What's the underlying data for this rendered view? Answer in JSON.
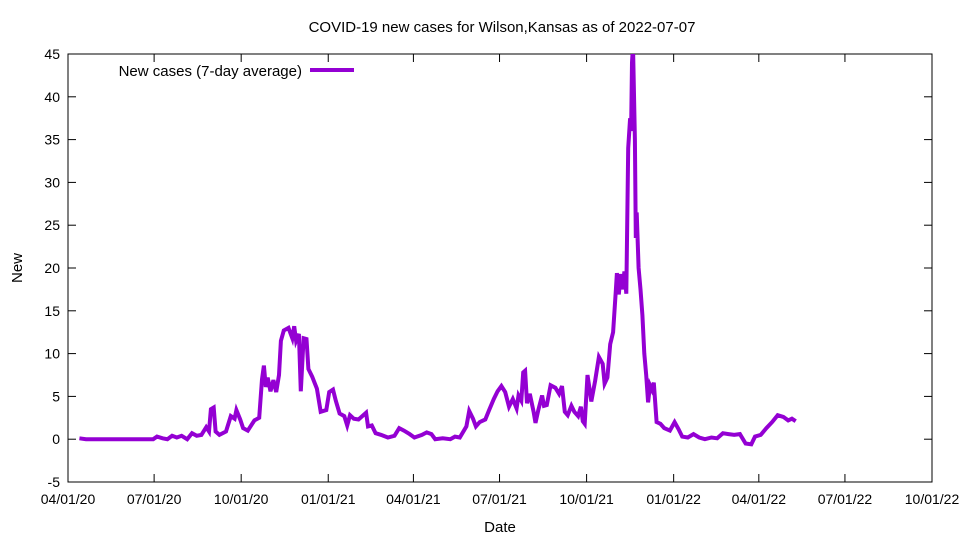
{
  "chart_data": {
    "type": "line",
    "title": "COVID-19 new cases for Wilson,Kansas as of 2022-07-07",
    "xlabel": "Date",
    "ylabel": "New",
    "xlim": [
      "2020-04-01",
      "2022-10-01"
    ],
    "ylim": [
      -5,
      45
    ],
    "x_ticks": [
      "04/01/20",
      "07/01/20",
      "10/01/20",
      "01/01/21",
      "04/01/21",
      "07/01/21",
      "10/01/21",
      "01/01/22",
      "04/01/22",
      "07/01/22",
      "10/01/22"
    ],
    "x_tick_dates": [
      "2020-04-01",
      "2020-07-01",
      "2020-10-01",
      "2021-01-01",
      "2021-04-01",
      "2021-07-01",
      "2021-10-01",
      "2022-01-01",
      "2022-04-01",
      "2022-07-01",
      "2022-10-01"
    ],
    "y_ticks": [
      -5,
      0,
      5,
      10,
      15,
      20,
      25,
      30,
      35,
      40,
      45
    ],
    "grid": false,
    "legend_position": "top-left",
    "series": [
      {
        "name": "New cases (7-day average)",
        "color": "#9400d3",
        "points": [
          [
            "2020-04-13",
            0.1
          ],
          [
            "2020-04-20",
            0.0
          ],
          [
            "2020-05-15",
            0.0
          ],
          [
            "2020-06-15",
            0.0
          ],
          [
            "2020-06-30",
            0.0
          ],
          [
            "2020-07-04",
            0.3
          ],
          [
            "2020-07-10",
            0.1
          ],
          [
            "2020-07-15",
            0.0
          ],
          [
            "2020-07-20",
            0.4
          ],
          [
            "2020-07-25",
            0.2
          ],
          [
            "2020-07-30",
            0.4
          ],
          [
            "2020-08-05",
            0.0
          ],
          [
            "2020-08-10",
            0.7
          ],
          [
            "2020-08-15",
            0.4
          ],
          [
            "2020-08-20",
            0.5
          ],
          [
            "2020-08-25",
            1.4
          ],
          [
            "2020-08-28",
            0.9
          ],
          [
            "2020-08-30",
            3.5
          ],
          [
            "2020-09-02",
            3.7
          ],
          [
            "2020-09-04",
            0.9
          ],
          [
            "2020-09-08",
            0.5
          ],
          [
            "2020-09-15",
            0.9
          ],
          [
            "2020-09-20",
            2.7
          ],
          [
            "2020-09-24",
            2.4
          ],
          [
            "2020-09-26",
            3.4
          ],
          [
            "2020-09-30",
            2.3
          ],
          [
            "2020-10-03",
            1.3
          ],
          [
            "2020-10-08",
            1.0
          ],
          [
            "2020-10-15",
            2.2
          ],
          [
            "2020-10-20",
            2.5
          ],
          [
            "2020-10-23",
            7.0
          ],
          [
            "2020-10-25",
            8.6
          ],
          [
            "2020-10-27",
            6.1
          ],
          [
            "2020-10-29",
            7.2
          ],
          [
            "2020-11-01",
            5.6
          ],
          [
            "2020-11-04",
            6.9
          ],
          [
            "2020-11-07",
            5.5
          ],
          [
            "2020-11-10",
            7.5
          ],
          [
            "2020-11-12",
            11.5
          ],
          [
            "2020-11-15",
            12.7
          ],
          [
            "2020-11-20",
            13.0
          ],
          [
            "2020-11-24",
            11.8
          ],
          [
            "2020-11-26",
            13.2
          ],
          [
            "2020-11-28",
            11.5
          ],
          [
            "2020-12-01",
            12.3
          ],
          [
            "2020-12-03",
            5.6
          ],
          [
            "2020-12-06",
            11.8
          ],
          [
            "2020-12-09",
            11.7
          ],
          [
            "2020-12-11",
            8.2
          ],
          [
            "2020-12-15",
            7.3
          ],
          [
            "2020-12-20",
            5.9
          ],
          [
            "2020-12-24",
            3.2
          ],
          [
            "2020-12-30",
            3.4
          ],
          [
            "2021-01-02",
            5.5
          ],
          [
            "2021-01-06",
            5.8
          ],
          [
            "2021-01-09",
            4.5
          ],
          [
            "2021-01-13",
            3.0
          ],
          [
            "2021-01-18",
            2.7
          ],
          [
            "2021-01-21",
            1.6
          ],
          [
            "2021-01-24",
            2.8
          ],
          [
            "2021-01-28",
            2.4
          ],
          [
            "2021-02-02",
            2.3
          ],
          [
            "2021-02-06",
            2.7
          ],
          [
            "2021-02-10",
            3.1
          ],
          [
            "2021-02-12",
            1.5
          ],
          [
            "2021-02-16",
            1.6
          ],
          [
            "2021-02-20",
            0.7
          ],
          [
            "2021-02-26",
            0.5
          ],
          [
            "2021-03-05",
            0.2
          ],
          [
            "2021-03-12",
            0.4
          ],
          [
            "2021-03-17",
            1.3
          ],
          [
            "2021-03-22",
            1.0
          ],
          [
            "2021-03-28",
            0.6
          ],
          [
            "2021-04-02",
            0.2
          ],
          [
            "2021-04-10",
            0.5
          ],
          [
            "2021-04-15",
            0.8
          ],
          [
            "2021-04-20",
            0.6
          ],
          [
            "2021-04-24",
            0.0
          ],
          [
            "2021-05-02",
            0.1
          ],
          [
            "2021-05-10",
            0.0
          ],
          [
            "2021-05-15",
            0.3
          ],
          [
            "2021-05-20",
            0.2
          ],
          [
            "2021-05-27",
            1.5
          ],
          [
            "2021-05-30",
            3.3
          ],
          [
            "2021-06-03",
            2.4
          ],
          [
            "2021-06-06",
            1.5
          ],
          [
            "2021-06-10",
            2.0
          ],
          [
            "2021-06-16",
            2.3
          ],
          [
            "2021-06-20",
            3.4
          ],
          [
            "2021-06-25",
            4.7
          ],
          [
            "2021-06-29",
            5.6
          ],
          [
            "2021-07-03",
            6.2
          ],
          [
            "2021-07-07",
            5.5
          ],
          [
            "2021-07-11",
            3.8
          ],
          [
            "2021-07-15",
            4.7
          ],
          [
            "2021-07-19",
            3.6
          ],
          [
            "2021-07-21",
            5.1
          ],
          [
            "2021-07-24",
            4.5
          ],
          [
            "2021-07-26",
            7.8
          ],
          [
            "2021-07-28",
            8.0
          ],
          [
            "2021-07-30",
            4.2
          ],
          [
            "2021-08-02",
            5.3
          ],
          [
            "2021-08-06",
            3.2
          ],
          [
            "2021-08-08",
            1.9
          ],
          [
            "2021-08-11",
            3.4
          ],
          [
            "2021-08-15",
            5.1
          ],
          [
            "2021-08-17",
            3.9
          ],
          [
            "2021-08-20",
            4.0
          ],
          [
            "2021-08-24",
            6.3
          ],
          [
            "2021-08-29",
            6.0
          ],
          [
            "2021-09-02",
            5.3
          ],
          [
            "2021-09-05",
            6.2
          ],
          [
            "2021-09-08",
            3.2
          ],
          [
            "2021-09-11",
            2.8
          ],
          [
            "2021-09-15",
            3.9
          ],
          [
            "2021-09-18",
            3.2
          ],
          [
            "2021-09-22",
            2.7
          ],
          [
            "2021-09-25",
            3.8
          ],
          [
            "2021-09-27",
            2.1
          ],
          [
            "2021-09-29",
            1.8
          ],
          [
            "2021-10-02",
            7.5
          ],
          [
            "2021-10-04",
            6.0
          ],
          [
            "2021-10-06",
            4.4
          ],
          [
            "2021-10-10",
            6.8
          ],
          [
            "2021-10-14",
            9.6
          ],
          [
            "2021-10-18",
            8.8
          ],
          [
            "2021-10-20",
            6.5
          ],
          [
            "2021-10-23",
            7.2
          ],
          [
            "2021-10-26",
            11.1
          ],
          [
            "2021-10-29",
            12.5
          ],
          [
            "2021-11-01",
            17.5
          ],
          [
            "2021-11-02",
            19.4
          ],
          [
            "2021-11-04",
            16.9
          ],
          [
            "2021-11-06",
            19.3
          ],
          [
            "2021-11-08",
            17.5
          ],
          [
            "2021-11-10",
            19.6
          ],
          [
            "2021-11-12",
            17.0
          ],
          [
            "2021-11-14",
            34.0
          ],
          [
            "2021-11-16",
            37.5
          ],
          [
            "2021-11-17",
            36.0
          ],
          [
            "2021-11-18",
            44.0
          ],
          [
            "2021-11-19",
            46.0
          ],
          [
            "2021-11-21",
            35.0
          ],
          [
            "2021-11-22",
            23.5
          ],
          [
            "2021-11-23",
            26.5
          ],
          [
            "2021-11-25",
            20.0
          ],
          [
            "2021-11-27",
            17.5
          ],
          [
            "2021-11-29",
            14.5
          ],
          [
            "2021-12-01",
            10.0
          ],
          [
            "2021-12-03",
            7.5
          ],
          [
            "2021-12-05",
            4.3
          ],
          [
            "2021-12-07",
            6.3
          ],
          [
            "2021-12-09",
            5.8
          ],
          [
            "2021-12-11",
            6.6
          ],
          [
            "2021-12-14",
            2.0
          ],
          [
            "2021-12-18",
            1.8
          ],
          [
            "2021-12-22",
            1.3
          ],
          [
            "2021-12-28",
            1.0
          ],
          [
            "2022-01-02",
            2.0
          ],
          [
            "2022-01-06",
            1.2
          ],
          [
            "2022-01-10",
            0.3
          ],
          [
            "2022-01-16",
            0.2
          ],
          [
            "2022-01-22",
            0.6
          ],
          [
            "2022-01-28",
            0.2
          ],
          [
            "2022-02-03",
            0.0
          ],
          [
            "2022-02-10",
            0.2
          ],
          [
            "2022-02-16",
            0.1
          ],
          [
            "2022-02-22",
            0.7
          ],
          [
            "2022-02-28",
            0.6
          ],
          [
            "2022-03-06",
            0.5
          ],
          [
            "2022-03-12",
            0.6
          ],
          [
            "2022-03-18",
            -0.5
          ],
          [
            "2022-03-24",
            -0.6
          ],
          [
            "2022-03-28",
            0.3
          ],
          [
            "2022-04-03",
            0.5
          ],
          [
            "2022-04-09",
            1.3
          ],
          [
            "2022-04-15",
            2.0
          ],
          [
            "2022-04-21",
            2.8
          ],
          [
            "2022-04-27",
            2.6
          ],
          [
            "2022-05-02",
            2.2
          ],
          [
            "2022-05-06",
            2.4
          ],
          [
            "2022-05-10",
            2.1
          ]
        ]
      }
    ]
  }
}
